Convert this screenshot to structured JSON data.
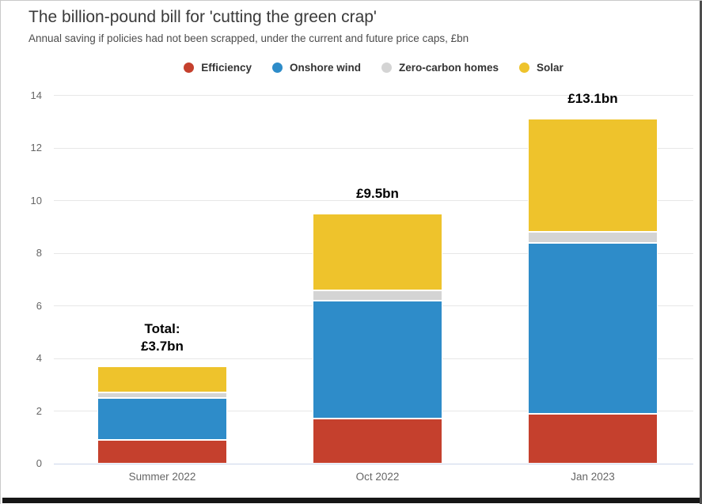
{
  "header": {
    "title": "The billion-pound bill for 'cutting the green crap'",
    "subtitle": "Annual saving if policies had not been scrapped, under the current and future price caps, £bn"
  },
  "chart_data": {
    "type": "bar",
    "stacked": true,
    "title": "The billion-pound bill for 'cutting the green crap'",
    "subtitle": "Annual saving if policies had not been scrapped, under the current and future price caps, £bn",
    "categories": [
      "Summer 2022",
      "Oct 2022",
      "Jan 2023"
    ],
    "series": [
      {
        "name": "Efficiency",
        "color": "#c5402d",
        "values": [
          0.9,
          1.7,
          1.9
        ]
      },
      {
        "name": "Onshore wind",
        "color": "#2e8cc9",
        "values": [
          1.6,
          4.5,
          6.5
        ]
      },
      {
        "name": "Zero-carbon homes",
        "color": "#d4d4d4",
        "values": [
          0.2,
          0.4,
          0.4
        ]
      },
      {
        "name": "Solar",
        "color": "#eec32c",
        "values": [
          1.0,
          2.9,
          4.3
        ]
      }
    ],
    "totals": [
      3.7,
      9.5,
      13.1
    ],
    "bar_labels": [
      [
        "Total:",
        "£3.7bn"
      ],
      [
        "£9.5bn"
      ],
      [
        "£13.1bn"
      ]
    ],
    "ylim": [
      0,
      14
    ],
    "yticks": [
      0,
      2,
      4,
      6,
      8,
      10,
      12,
      14
    ],
    "xlabel": "",
    "ylabel": "",
    "legend_position": "top",
    "grid": true
  }
}
